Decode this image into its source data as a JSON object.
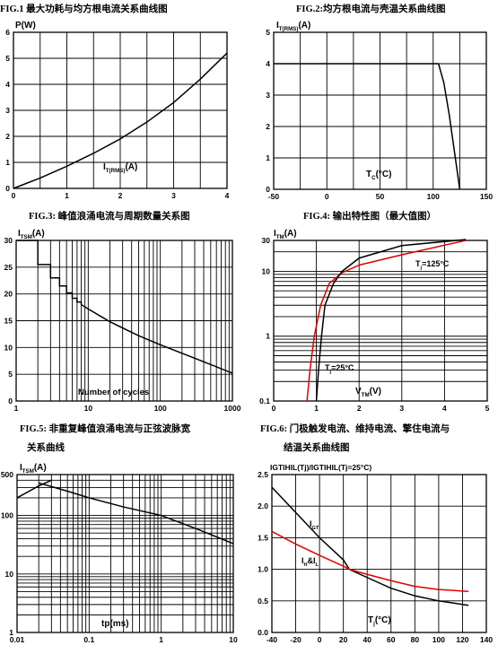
{
  "chart_data": [
    {
      "id": "fig1",
      "type": "line",
      "title": "FIG.1  最大功耗与均方根电流关系曲线图",
      "ylabel": "P(W)",
      "xlabel_main": "I",
      "xlabel_sub": "T(RMS)",
      "xlabel_tail": "(A)",
      "xlim": [
        0,
        4
      ],
      "ylim": [
        0,
        6
      ],
      "xticks": [
        "0",
        "1",
        "2",
        "3",
        "4"
      ],
      "yticks": [
        "0",
        "1",
        "2",
        "3",
        "4",
        "5",
        "6"
      ],
      "series": [
        {
          "color": "#000000",
          "points": [
            [
              0,
              0
            ],
            [
              0.5,
              0.4
            ],
            [
              1,
              0.85
            ],
            [
              1.5,
              1.35
            ],
            [
              2,
              1.9
            ],
            [
              2.5,
              2.55
            ],
            [
              3,
              3.3
            ],
            [
              3.5,
              4.2
            ],
            [
              4,
              5.2
            ]
          ]
        }
      ]
    },
    {
      "id": "fig2",
      "type": "line",
      "title": "FIG.2:均方根电流与壳温关系曲线图",
      "ylabel_main": "I",
      "ylabel_sub": "T(RMS)",
      "ylabel_tail": "(A)",
      "xlabel_main": "T",
      "xlabel_sub": "C",
      "xlabel_tail": "(°C)",
      "xlim": [
        -50,
        150
      ],
      "ylim": [
        0,
        5
      ],
      "xticks": [
        "-50",
        "0",
        "50",
        "100",
        "150"
      ],
      "yticks": [
        "0",
        "1",
        "2",
        "3",
        "4",
        "5"
      ],
      "series": [
        {
          "color": "#000000",
          "points": [
            [
              -50,
              4
            ],
            [
              105,
              4
            ],
            [
              110,
              3.4
            ],
            [
              115,
              2.4
            ],
            [
              120,
              1.2
            ],
            [
              125,
              0
            ]
          ]
        }
      ]
    },
    {
      "id": "fig3",
      "type": "line",
      "title": "FIG.3:  峰值浪涌电流与周期数量关系图",
      "ylabel_main": "I",
      "ylabel_sub": "TSM",
      "ylabel_tail": "(A)",
      "xlabel": "Number of cycles",
      "x_scale": "log",
      "xlim": [
        1,
        1000
      ],
      "ylim": [
        0,
        30
      ],
      "xticks": [
        "1",
        "10",
        "100",
        "1000"
      ],
      "yticks": [
        "0",
        "5",
        "10",
        "15",
        "20",
        "25",
        "30"
      ],
      "series": [
        {
          "color": "#000000",
          "points": [
            [
              1,
              30
            ],
            [
              2,
              30
            ],
            [
              2,
              25.5
            ],
            [
              3,
              25.5
            ],
            [
              3,
              23
            ],
            [
              4,
              23
            ],
            [
              4,
              21.5
            ],
            [
              5,
              21.5
            ],
            [
              5,
              20.2
            ],
            [
              6,
              20.2
            ],
            [
              6,
              19.2
            ],
            [
              7,
              19.2
            ],
            [
              7,
              18.5
            ],
            [
              8,
              18.5
            ],
            [
              8,
              18
            ],
            [
              10,
              17.2
            ],
            [
              20,
              14.8
            ],
            [
              50,
              12.2
            ],
            [
              100,
              10.5
            ],
            [
              300,
              8
            ],
            [
              1000,
              5.2
            ]
          ]
        }
      ]
    },
    {
      "id": "fig4",
      "type": "line",
      "title": "FIG.4:  输出特性图（最大值图）",
      "ylabel_main": "I",
      "ylabel_sub": "TM",
      "ylabel_tail": "(A)",
      "xlabel_main": "V",
      "xlabel_sub": "TM",
      "xlabel_tail": "(V)",
      "y_scale": "log",
      "xlim": [
        0,
        5
      ],
      "ylim": [
        0.1,
        30
      ],
      "xticks": [
        "0",
        "1",
        "2",
        "3",
        "4",
        "5"
      ],
      "yticks": [
        "0.1",
        "1",
        "10",
        "30"
      ],
      "annotations": [
        {
          "main": "T",
          "sub": "j",
          "tail": "=125°C"
        },
        {
          "main": "T",
          "sub": "j",
          "tail": "=25°C"
        }
      ],
      "series": [
        {
          "name_ref": "T=125°C",
          "color": "#e00000",
          "points": [
            [
              0.78,
              0.1
            ],
            [
              0.85,
              0.3
            ],
            [
              0.95,
              1
            ],
            [
              1.1,
              3
            ],
            [
              1.3,
              6.5
            ],
            [
              1.6,
              9.5
            ],
            [
              2,
              12.5
            ],
            [
              3,
              18
            ],
            [
              4.5,
              30
            ]
          ]
        },
        {
          "name_ref": "T=25°C",
          "color": "#000000",
          "points": [
            [
              1.0,
              0.1
            ],
            [
              1.05,
              0.3
            ],
            [
              1.12,
              1
            ],
            [
              1.2,
              3
            ],
            [
              1.4,
              6.5
            ],
            [
              1.6,
              10
            ],
            [
              2,
              16
            ],
            [
              3,
              25
            ],
            [
              4.5,
              31
            ]
          ]
        }
      ]
    },
    {
      "id": "fig5",
      "type": "line",
      "title_line1": "FIG.5:  非重复峰值浪涌电流与正弦波脉宽",
      "title_line2": "关系曲线",
      "ylabel_main": "I",
      "ylabel_sub": "TSM",
      "ylabel_tail": "(A)",
      "xlabel": "tp(ms)",
      "x_scale": "log",
      "y_scale": "log",
      "xlim": [
        0.01,
        10
      ],
      "ylim": [
        1,
        500
      ],
      "xticks": [
        "0.01",
        "0.1",
        "1",
        "10"
      ],
      "yticks": [
        "1",
        "10",
        "100",
        "500"
      ],
      "series": [
        {
          "color": "#000000",
          "points": [
            [
              0.01,
              200
            ],
            [
              0.02,
              320
            ],
            [
              0.03,
              400
            ]
          ]
        },
        {
          "color": "#000000",
          "points": [
            [
              0.02,
              360
            ],
            [
              0.05,
              260
            ],
            [
              0.1,
              200
            ],
            [
              0.3,
              140
            ],
            [
              1,
              100
            ],
            [
              3,
              60
            ],
            [
              10,
              33
            ]
          ]
        }
      ]
    },
    {
      "id": "fig6",
      "type": "line",
      "title_line1": "FIG.6:  门极触发电流、维持电流、擎住电流与",
      "title_line2": "结温关系曲线图",
      "ylabel": "IGTIHIL(Tj)/IGTIHIL(Tj=25°C)",
      "xlabel_main": "T",
      "xlabel_sub": "j",
      "xlabel_tail": "(°C)",
      "xlim": [
        -40,
        140
      ],
      "ylim": [
        0,
        2.5
      ],
      "xticks": [
        "-40",
        "-20",
        "0",
        "20",
        "40",
        "60",
        "80",
        "100",
        "120",
        "140"
      ],
      "yticks": [
        "0.0",
        "0.5",
        "1.0",
        "1.5",
        "2.0",
        "2.5"
      ],
      "annotations": [
        {
          "main": "I",
          "sub": "GT",
          "tail": ""
        },
        {
          "main": "I",
          "sub": "H",
          "tail": "&I",
          "sub2": "L"
        }
      ],
      "series": [
        {
          "name_ref": "IGT",
          "color": "#000000",
          "points": [
            [
              -40,
              2.3
            ],
            [
              -20,
              1.9
            ],
            [
              0,
              1.5
            ],
            [
              20,
              1.15
            ],
            [
              25,
              1.0
            ],
            [
              40,
              0.87
            ],
            [
              60,
              0.7
            ],
            [
              80,
              0.58
            ],
            [
              100,
              0.5
            ],
            [
              125,
              0.43
            ]
          ]
        },
        {
          "name_ref": "IH&IL",
          "color": "#e00000",
          "points": [
            [
              -40,
              1.6
            ],
            [
              -20,
              1.4
            ],
            [
              0,
              1.22
            ],
            [
              20,
              1.05
            ],
            [
              25,
              1.0
            ],
            [
              40,
              0.92
            ],
            [
              60,
              0.82
            ],
            [
              80,
              0.73
            ],
            [
              100,
              0.68
            ],
            [
              125,
              0.65
            ]
          ]
        }
      ]
    }
  ]
}
